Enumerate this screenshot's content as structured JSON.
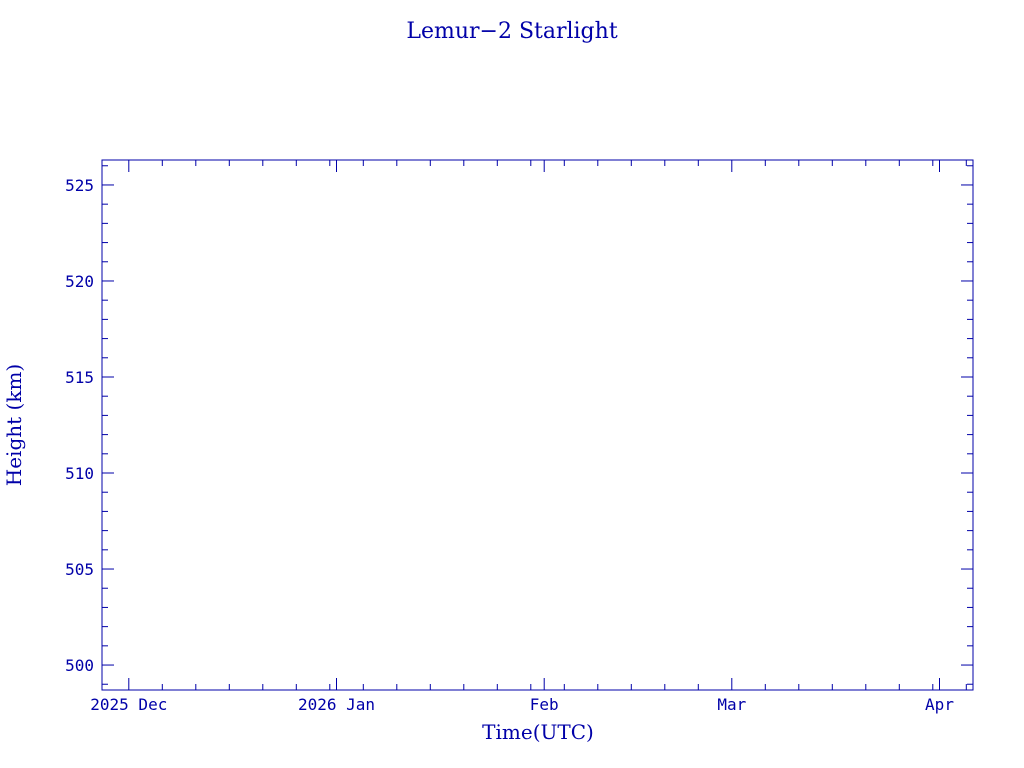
{
  "chart_data": {
    "type": "line",
    "title": "Lemur−2 Starlight",
    "xlabel": "Time(UTC)",
    "ylabel": "Height (km)",
    "xlim": [
      "2025-11-27",
      "2026-04-06"
    ],
    "ylim": [
      498.7,
      526.3
    ],
    "x_ticks": [
      {
        "date": "2025-12-01",
        "label": "2025 Dec"
      },
      {
        "date": "2026-01-01",
        "label": "2026 Jan"
      },
      {
        "date": "2026-02-01",
        "label": "Feb"
      },
      {
        "date": "2026-03-01",
        "label": "Mar"
      },
      {
        "date": "2026-04-01",
        "label": "Apr"
      }
    ],
    "y_ticks": [
      500,
      505,
      510,
      515,
      520,
      525
    ],
    "y_minor_step": 1,
    "x_minor_step_days": 5,
    "series": [],
    "grid": false,
    "colors": {
      "axis": "#0000a8",
      "text": "#0000a8"
    }
  }
}
